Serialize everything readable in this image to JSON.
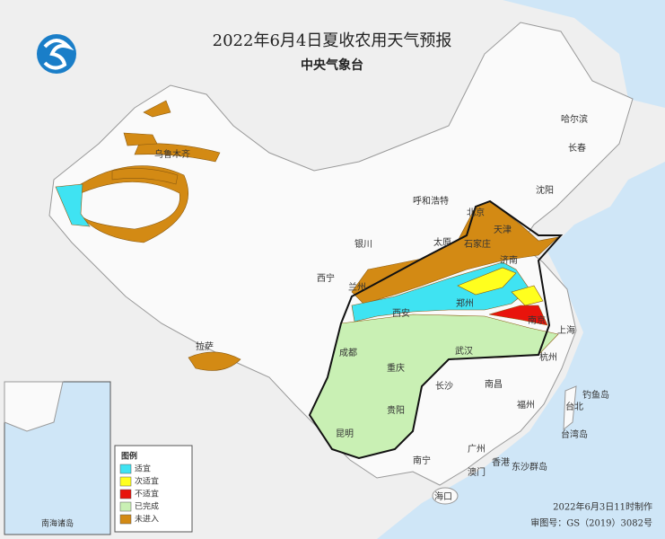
{
  "header": {
    "title": "2022年6月4日夏收农用天气预报",
    "subtitle": "中央气象台"
  },
  "legend": {
    "title": "图例",
    "items": [
      {
        "label": "适宜",
        "color": "#3fe3f2"
      },
      {
        "label": "次适宜",
        "color": "#ffff1e"
      },
      {
        "label": "不适宜",
        "color": "#e8140c"
      },
      {
        "label": "已完成",
        "color": "#c9f0b4"
      },
      {
        "label": "未进入",
        "color": "#d38a14"
      }
    ]
  },
  "cities": [
    "哈尔滨",
    "长春",
    "沈阳",
    "北京",
    "天津",
    "呼和浩特",
    "银川",
    "太原",
    "石家庄",
    "济南",
    "西宁",
    "兰州",
    "郑州",
    "西安",
    "南京",
    "上海",
    "成都",
    "武汉",
    "杭州",
    "重庆",
    "长沙",
    "南昌",
    "福州",
    "台北",
    "贵阳",
    "昆明",
    "南宁",
    "广州",
    "香港",
    "澳门",
    "海口",
    "乌鲁木齐",
    "拉萨"
  ],
  "islands": [
    "钓鱼岛",
    "台湾岛",
    "东沙群岛"
  ],
  "inset": {
    "label": "南海诸岛"
  },
  "footer": {
    "made": "2022年6月3日11时制作",
    "approval": "审图号：GS（2019）3082号"
  }
}
